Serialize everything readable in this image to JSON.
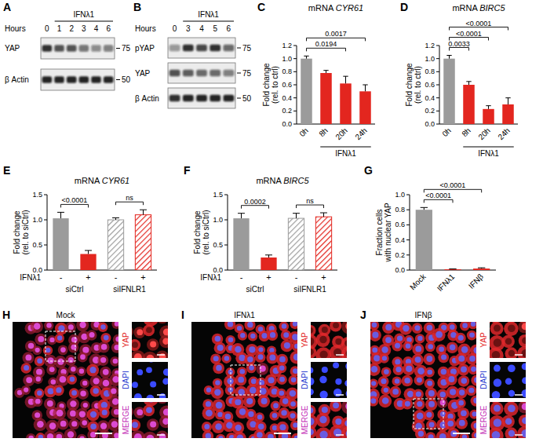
{
  "chart_data": [
    {
      "type": "bar",
      "panel": "C",
      "title": "mRNA CYR61",
      "y_label": "Fold change (rel. to ctrl)",
      "categories": [
        "0h",
        "8h",
        "20h",
        "24h"
      ],
      "values": [
        1.0,
        0.78,
        0.62,
        0.5
      ],
      "errors": [
        0.04,
        0.04,
        0.11,
        0.1
      ],
      "colors": [
        "#9b9b9b",
        "#e3261f",
        "#e3261f",
        "#e3261f"
      ],
      "ylim": [
        0,
        1.2
      ],
      "yticks": [
        {
          "value": 0,
          "label": "0.0"
        },
        0.2,
        0.4,
        0.6,
        0.8,
        {
          "value": 1,
          "label": "1.0"
        },
        1.2
      ],
      "group_label": {
        "text": "IFNλ1",
        "from": 1,
        "to": 3
      },
      "annotations": [
        {
          "text": "0.0194",
          "pair": [
            0,
            2
          ]
        },
        {
          "text": "0.0017",
          "pair": [
            0,
            3
          ]
        }
      ]
    },
    {
      "type": "bar",
      "panel": "D",
      "title": "mRNA BIRC5",
      "y_label": "Fold change (rel. to ctrl)",
      "categories": [
        "0h",
        "8h",
        "20h",
        "24h"
      ],
      "values": [
        1.0,
        0.6,
        0.23,
        0.3
      ],
      "errors": [
        0.05,
        0.05,
        0.05,
        0.1
      ],
      "colors": [
        "#9b9b9b",
        "#e3261f",
        "#e3261f",
        "#e3261f"
      ],
      "ylim": [
        0,
        1.2
      ],
      "yticks": [
        {
          "value": 0,
          "label": "0.0"
        },
        0.2,
        0.4,
        0.6,
        0.8,
        {
          "value": 1,
          "label": "1.0"
        },
        1.2
      ],
      "group_label": {
        "text": "IFNλ1",
        "from": 1,
        "to": 3
      },
      "annotations": [
        {
          "text": "0.0033",
          "pair": [
            0,
            1
          ]
        },
        {
          "text": "<0.0001",
          "pair": [
            0,
            2
          ]
        },
        {
          "text": "<0.0001",
          "pair": [
            0,
            3
          ]
        }
      ]
    },
    {
      "type": "bar",
      "panel": "E",
      "title": "mRNA CYR61",
      "y_label": "Fold change (rel. to siCtrl)",
      "categories": [
        "-",
        "+",
        "-",
        "+"
      ],
      "row_label": "IFNλ1",
      "groups": [
        {
          "text": "siCtrl",
          "from": 0,
          "to": 1
        },
        {
          "text": "siIFNLR1",
          "from": 2,
          "to": 3
        }
      ],
      "values": [
        1.03,
        0.32,
        1.0,
        1.1
      ],
      "errors": [
        0.12,
        0.07,
        0.04,
        0.1
      ],
      "colors": [
        "#9b9b9b",
        "#e3261f",
        "#9b9b9b",
        "#e3261f"
      ],
      "ylim": [
        0,
        1.5
      ],
      "yticks": [
        {
          "value": 0,
          "label": "0.0"
        },
        0.5,
        {
          "value": 1,
          "label": "1.0"
        },
        1.5
      ],
      "annotations": [
        {
          "text": "<0.0001",
          "pair": [
            0,
            1
          ]
        },
        {
          "text": "ns",
          "pair": [
            2,
            3
          ]
        }
      ]
    },
    {
      "type": "bar",
      "panel": "F",
      "title": "mRNA BIRC5",
      "y_label": "Fold change (rel. to siCtrl)",
      "categories": [
        "-",
        "+",
        "-",
        "+"
      ],
      "row_label": "IFNλ1",
      "groups": [
        {
          "text": "siCtrl",
          "from": 0,
          "to": 1
        },
        {
          "text": "siIFNLR1",
          "from": 2,
          "to": 3
        }
      ],
      "values": [
        1.03,
        0.25,
        1.03,
        1.06
      ],
      "errors": [
        0.1,
        0.05,
        0.1,
        0.08
      ],
      "colors": [
        "#9b9b9b",
        "#e3261f",
        "#9b9b9b",
        "#e3261f"
      ],
      "ylim": [
        0,
        1.5
      ],
      "yticks": [
        {
          "value": 0,
          "label": "0.0"
        },
        0.5,
        {
          "value": 1,
          "label": "1.0"
        },
        1.5
      ],
      "annotations": [
        {
          "text": "0.0002",
          "pair": [
            0,
            1
          ]
        },
        {
          "text": "ns",
          "pair": [
            2,
            3
          ]
        }
      ]
    },
    {
      "type": "bar",
      "panel": "G",
      "y_label": "Fraction cells with nuclear YAP",
      "categories": [
        "Mock",
        "IFNλ1",
        "IFNβ"
      ],
      "values": [
        0.8,
        0.01,
        0.02
      ],
      "errors": [
        0.03,
        0.005,
        0.01
      ],
      "colors": [
        "#9b9b9b",
        "#e3261f",
        "#e3261f"
      ],
      "ylim": [
        0,
        1
      ],
      "yticks": [
        {
          "value": 0,
          "label": "0.0"
        },
        0.2,
        0.4,
        0.6,
        0.8,
        {
          "value": 1,
          "label": "1.0"
        }
      ],
      "annotations": [
        {
          "text": "<0.0001",
          "pair": [
            0,
            1
          ]
        },
        {
          "text": "<0.0001",
          "pair": [
            0,
            2
          ]
        }
      ]
    }
  ],
  "blots": [
    {
      "panel": "A",
      "x_label": "Hours",
      "lanes": [
        "0",
        "1",
        "2",
        "3",
        "4",
        "6"
      ],
      "treatment": {
        "text": "IFNλ1",
        "from": 1,
        "to": 5
      },
      "rows": [
        {
          "label": "YAP",
          "marker": 75,
          "intensity": [
            0.85,
            0.7,
            0.7,
            0.55,
            0.45,
            0.5
          ]
        },
        {
          "label": "β Actin",
          "marker": 50,
          "intensity": [
            0.9,
            0.9,
            0.9,
            0.9,
            0.9,
            0.9
          ]
        }
      ]
    },
    {
      "panel": "B",
      "x_label": "Hours",
      "lanes": [
        "0",
        "3",
        "4",
        "5",
        "6"
      ],
      "treatment": {
        "text": "IFNλ1",
        "from": 1,
        "to": 4
      },
      "rows": [
        {
          "label": "pYAP",
          "marker": 75,
          "intensity": [
            0.4,
            0.85,
            0.75,
            0.85,
            0.6
          ]
        },
        {
          "label": "YAP",
          "marker": 75,
          "intensity": [
            0.7,
            0.65,
            0.6,
            0.6,
            0.5
          ]
        },
        {
          "label": "β Actin",
          "marker": 50,
          "intensity": [
            0.85,
            0.9,
            0.9,
            0.9,
            0.9
          ]
        }
      ]
    }
  ],
  "micrographs": [
    {
      "panel": "H",
      "title": "Mock",
      "channels": [
        "YAP",
        "DAPI",
        "MERGE"
      ]
    },
    {
      "panel": "I",
      "title": "IFNλ1",
      "channels": [
        "YAP",
        "DAPI",
        "MERGE"
      ]
    },
    {
      "panel": "J",
      "title": "IFNβ",
      "channels": [
        "YAP",
        "DAPI",
        "MERGE"
      ]
    }
  ]
}
